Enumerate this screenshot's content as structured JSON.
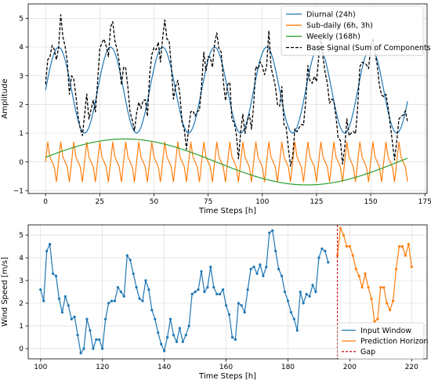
{
  "chart_data": [
    {
      "type": "line",
      "xlabel": "Time Steps [h]",
      "ylabel": "Amplitude",
      "xlim": [
        -8,
        176
      ],
      "ylim": [
        -1.1,
        5.5
      ],
      "xticks": [
        0,
        25,
        50,
        75,
        100,
        125,
        150,
        175
      ],
      "yticks": [
        -1,
        0,
        1,
        2,
        3,
        4,
        5
      ],
      "grid": true,
      "legend_position": "top-right",
      "series": [
        {
          "name": "Diurnal (24h)",
          "color": "#1f77b4",
          "style": "solid",
          "formula": "2.5 + 1.5*sin(2*pi*t/24)",
          "x_range": [
            0,
            167
          ]
        },
        {
          "name": "Sub-daily (6h, 3h)",
          "color": "#ff7f0e",
          "style": "solid",
          "formula": "0.5*sin(2*pi*t/6) + 0.3*sin(2*pi*t/3)",
          "x_range": [
            0,
            167
          ]
        },
        {
          "name": "Weekly (168h)",
          "color": "#2ca02c",
          "style": "solid",
          "formula": "0.8*sin(2*pi*t/168 + 0.2)",
          "x_range": [
            0,
            167
          ]
        },
        {
          "name": "Base Signal (Sum of Components)",
          "color": "#000000",
          "style": "dashed",
          "formula": "diurnal + sub-daily + weekly + noise",
          "x_range": [
            0,
            167
          ]
        }
      ]
    },
    {
      "type": "line",
      "xlabel": "Time Steps [h]",
      "ylabel": "Wind Speed [m/s]",
      "xlim": [
        96,
        225
      ],
      "ylim": [
        -0.45,
        5.45
      ],
      "xticks": [
        100,
        120,
        140,
        160,
        180,
        200,
        220
      ],
      "yticks": [
        0,
        1,
        2,
        3,
        4,
        5
      ],
      "grid": true,
      "legend_position": "bottom-right",
      "gap_x": 196,
      "series": [
        {
          "name": "Input Window",
          "color": "#1f77b4",
          "marker": "circle",
          "x_start": 100,
          "values": [
            2.6,
            2.1,
            4.3,
            4.6,
            3.3,
            3.2,
            2.2,
            1.6,
            2.3,
            1.9,
            1.3,
            1.4,
            0.6,
            -0.2,
            0.0,
            1.3,
            0.8,
            0.0,
            0.4,
            0.4,
            0.0,
            1.3,
            2.0,
            2.1,
            2.1,
            2.7,
            2.5,
            2.3,
            4.1,
            3.9,
            3.3,
            2.7,
            2.2,
            2.1,
            3.0,
            2.6,
            1.7,
            1.3,
            0.7,
            0.2,
            -0.1,
            0.5,
            1.3,
            0.6,
            0.3,
            0.9,
            0.3,
            0.6,
            1.0,
            2.4,
            2.5,
            2.6,
            3.4,
            2.5,
            2.7,
            3.6,
            2.7,
            2.4,
            2.4,
            2.6,
            1.9,
            1.5,
            0.5,
            0.4,
            2.0,
            1.9,
            1.6,
            2.6,
            3.5,
            3.6,
            3.3,
            3.7,
            3.2,
            3.6,
            5.1,
            5.2,
            4.3,
            3.5,
            3.2,
            2.5,
            2.1,
            1.6,
            1.3,
            0.8,
            2.5,
            2.0,
            2.4,
            2.3,
            2.8,
            2.5,
            4.0,
            4.4,
            4.3,
            3.8
          ]
        },
        {
          "name": "Prediction Horizon",
          "color": "#ff7f0e",
          "marker": "circle",
          "x_start": 196,
          "values": [
            4.1,
            5.3,
            5.0,
            4.5,
            4.5,
            4.1,
            3.5,
            3.2,
            2.7,
            3.3,
            2.7,
            2.2,
            1.2,
            1.3,
            2.7,
            2.7,
            2.0,
            1.7,
            2.1,
            3.5,
            4.5,
            4.5,
            4.1,
            4.6,
            3.6
          ]
        },
        {
          "name": "Gap",
          "color": "#d62728",
          "style": "dashed"
        }
      ]
    }
  ]
}
